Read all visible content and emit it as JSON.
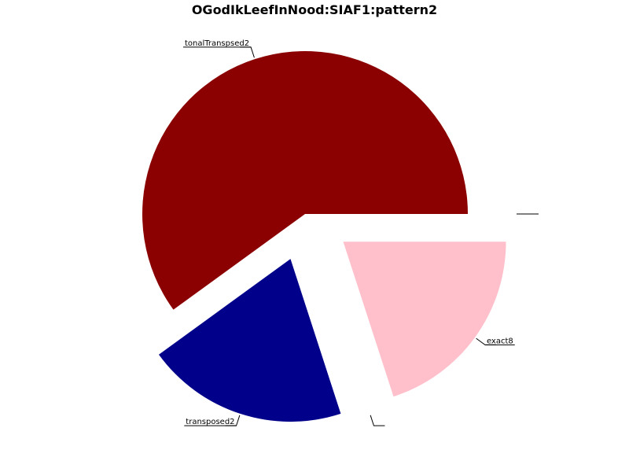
{
  "chart_data": {
    "type": "pie",
    "title": "OGodIkLeefInNood:SIAF1:pattern2",
    "start_angle_deg": 0,
    "direction": "counterclockwise",
    "slices": [
      {
        "label": "tonalTranspsed2",
        "value": 60,
        "color": "#8b0000",
        "exploded": false
      },
      {
        "label": "transposed2",
        "value": 20,
        "color": "#00008b",
        "exploded": true
      },
      {
        "label": "",
        "value": 0,
        "color": "#ffffff",
        "exploded": true
      },
      {
        "label": "exact8",
        "value": 20,
        "color": "#ffc0cb",
        "exploded": true
      },
      {
        "label": "",
        "value": 0,
        "color": "#ffffff",
        "exploded": true
      }
    ]
  }
}
